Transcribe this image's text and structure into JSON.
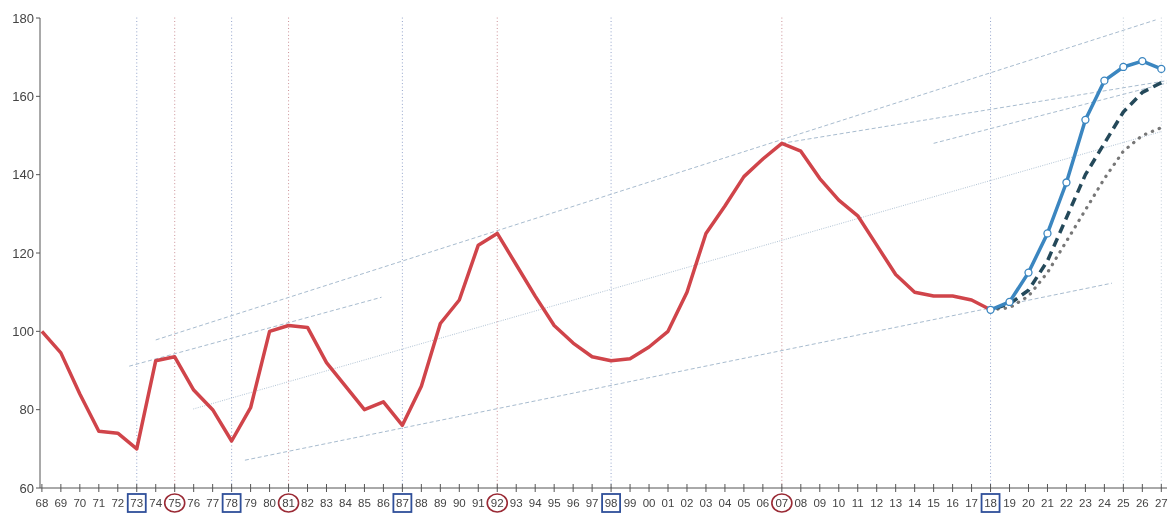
{
  "chart_data": {
    "type": "line",
    "xlim": [
      1967.9,
      2027.3
    ],
    "xticks": [
      {
        "value": 1968,
        "label": "68"
      },
      {
        "value": 1969,
        "label": "69"
      },
      {
        "value": 1970,
        "label": "70"
      },
      {
        "value": 1971,
        "label": "71"
      },
      {
        "value": 1972,
        "label": "72"
      },
      {
        "value": 1973,
        "label": "73"
      },
      {
        "value": 1974,
        "label": "74"
      },
      {
        "value": 1975,
        "label": "75"
      },
      {
        "value": 1976,
        "label": "76"
      },
      {
        "value": 1977,
        "label": "77"
      },
      {
        "value": 1978,
        "label": "78"
      },
      {
        "value": 1979,
        "label": "79"
      },
      {
        "value": 1980,
        "label": "80"
      },
      {
        "value": 1981,
        "label": "81"
      },
      {
        "value": 1982,
        "label": "82"
      },
      {
        "value": 1983,
        "label": "83"
      },
      {
        "value": 1984,
        "label": "84"
      },
      {
        "value": 1985,
        "label": "85"
      },
      {
        "value": 1986,
        "label": "86"
      },
      {
        "value": 1987,
        "label": "87"
      },
      {
        "value": 1988,
        "label": "88"
      },
      {
        "value": 1989,
        "label": "89"
      },
      {
        "value": 1990,
        "label": "90"
      },
      {
        "value": 1991,
        "label": "91"
      },
      {
        "value": 1992,
        "label": "92"
      },
      {
        "value": 1993,
        "label": "93"
      },
      {
        "value": 1994,
        "label": "94"
      },
      {
        "value": 1995,
        "label": "95"
      },
      {
        "value": 1996,
        "label": "96"
      },
      {
        "value": 1997,
        "label": "97"
      },
      {
        "value": 1998,
        "label": "98"
      },
      {
        "value": 1999,
        "label": "99"
      },
      {
        "value": 2000,
        "label": "00"
      },
      {
        "value": 2001,
        "label": "01"
      },
      {
        "value": 2002,
        "label": "02"
      },
      {
        "value": 2003,
        "label": "03"
      },
      {
        "value": 2004,
        "label": "04"
      },
      {
        "value": 2005,
        "label": "05"
      },
      {
        "value": 2006,
        "label": "06"
      },
      {
        "value": 2007,
        "label": "07"
      },
      {
        "value": 2008,
        "label": "08"
      },
      {
        "value": 2009,
        "label": "09"
      },
      {
        "value": 2010,
        "label": "10"
      },
      {
        "value": 2011,
        "label": "11"
      },
      {
        "value": 2012,
        "label": "12"
      },
      {
        "value": 2013,
        "label": "13"
      },
      {
        "value": 2014,
        "label": "14"
      },
      {
        "value": 2015,
        "label": "15"
      },
      {
        "value": 2016,
        "label": "16"
      },
      {
        "value": 2017,
        "label": "17"
      },
      {
        "value": 2018,
        "label": "18"
      },
      {
        "value": 2019,
        "label": "19"
      },
      {
        "value": 2020,
        "label": "20"
      },
      {
        "value": 2021,
        "label": "21"
      },
      {
        "value": 2022,
        "label": "22"
      },
      {
        "value": 2023,
        "label": "23"
      },
      {
        "value": 2024,
        "label": "24"
      },
      {
        "value": 2025,
        "label": "25"
      },
      {
        "value": 2026,
        "label": "26"
      },
      {
        "value": 2027,
        "label": "27"
      }
    ],
    "ylim": [
      60,
      180
    ],
    "yticks": [
      60,
      80,
      100,
      120,
      140,
      160,
      180
    ],
    "grid": false,
    "series": [
      {
        "type": "line",
        "color": "#a8bccf",
        "line_style": "dashed",
        "x": [
          1974,
          2026.7
        ],
        "values": [
          97.8,
          179.5
        ]
      },
      {
        "type": "line",
        "color": "#a8bccf",
        "line_style": "dashed",
        "x": [
          1972.6,
          1985.9
        ],
        "values": [
          91.1,
          108.7
        ]
      },
      {
        "type": "line",
        "color": "#a8bccf",
        "line_style": "dotted",
        "x": [
          1976,
          2027
        ],
        "values": [
          80.2,
          151
        ]
      },
      {
        "type": "line",
        "color": "#a8bccf",
        "line_style": "dashed",
        "x": [
          1978.7,
          2024.4
        ],
        "values": [
          67.1,
          112.3
        ]
      },
      {
        "type": "line",
        "color": "#a8bccf",
        "line_style": "dashed",
        "x": [
          2007,
          2027.3
        ],
        "values": [
          148,
          164
        ]
      },
      {
        "type": "line",
        "color": "#a8bccf",
        "line_style": "dashed",
        "x": [
          2015,
          2027.3
        ],
        "values": [
          148,
          163.4
        ]
      },
      {
        "color": "#d0444a",
        "line_style": "solid",
        "marker": "none",
        "x": [
          1968,
          1969,
          1970,
          1971,
          1972,
          1973,
          1974,
          1975,
          1976,
          1977,
          1978,
          1979,
          1980,
          1981,
          1982,
          1983,
          1984,
          1985,
          1986,
          1987,
          1988,
          1989,
          1990,
          1991,
          1992,
          1993,
          1994,
          1995,
          1996,
          1997,
          1998,
          1999,
          2000,
          2001,
          2002,
          2003,
          2004,
          2005,
          2006,
          2007,
          2008,
          2009,
          2010,
          2011,
          2012,
          2013,
          2014,
          2015,
          2016,
          2017,
          2018
        ],
        "values": [
          100,
          94.5,
          84,
          74.5,
          74,
          70,
          92.5,
          93.5,
          85,
          80,
          72,
          80.5,
          100,
          101.5,
          101,
          92,
          86,
          80,
          82,
          76,
          86,
          102,
          108,
          122,
          125,
          117,
          109,
          101.5,
          97,
          93.5,
          92.5,
          93,
          96,
          100,
          110,
          125,
          132,
          139.5,
          144,
          148,
          146,
          139,
          133.5,
          129.5,
          122,
          114.5,
          110,
          109,
          109,
          108,
          105.5
        ]
      },
      {
        "color": "#777777",
        "line_style": "dotted",
        "marker": "none",
        "x": [
          2018,
          2019,
          2020,
          2021,
          2022,
          2023,
          2024,
          2025,
          2026,
          2027
        ],
        "values": [
          105.5,
          106,
          109,
          115,
          123,
          131,
          139,
          146,
          150,
          152
        ]
      },
      {
        "color": "#24495a",
        "line_style": "dashed",
        "marker": "none",
        "x": [
          2018,
          2019,
          2020,
          2021,
          2022,
          2023,
          2024,
          2025,
          2026,
          2027
        ],
        "values": [
          105.5,
          107,
          110.5,
          118,
          129,
          140,
          148,
          156,
          161,
          163.5
        ]
      },
      {
        "color": "#3b86c0",
        "line_style": "solid",
        "marker": "circle",
        "x": [
          2018,
          2019,
          2020,
          2021,
          2022,
          2023,
          2024,
          2025,
          2026,
          2027
        ],
        "values": [
          105.5,
          107.5,
          115,
          125,
          138,
          154,
          164,
          167.5,
          169,
          167
        ]
      }
    ],
    "ref_lines": [
      {
        "axis": "x",
        "value": 1973,
        "color": "#2f4f9a",
        "line_style": "dotted"
      },
      {
        "axis": "x",
        "value": 1975,
        "color": "#9a2a35",
        "line_style": "dotted"
      },
      {
        "axis": "x",
        "value": 1978,
        "color": "#2f4f9a",
        "line_style": "dotted"
      },
      {
        "axis": "x",
        "value": 1981,
        "color": "#9a2a35",
        "line_style": "dotted"
      },
      {
        "axis": "x",
        "value": 1987,
        "color": "#2f4f9a",
        "line_style": "dotted"
      },
      {
        "axis": "x",
        "value": 1992,
        "color": "#9a2a35",
        "line_style": "dotted"
      },
      {
        "axis": "x",
        "value": 1998,
        "color": "#2f4f9a",
        "line_style": "dotted"
      },
      {
        "axis": "x",
        "value": 2007,
        "color": "#9a2a35",
        "line_style": "dotted"
      },
      {
        "axis": "x",
        "value": 2018,
        "color": "#2f4f9a",
        "line_style": "dotted"
      },
      {
        "axis": "x",
        "value": 2025,
        "line_style": "dotted"
      },
      {
        "axis": "x",
        "value": 2027,
        "line_style": "dotted"
      }
    ]
  }
}
